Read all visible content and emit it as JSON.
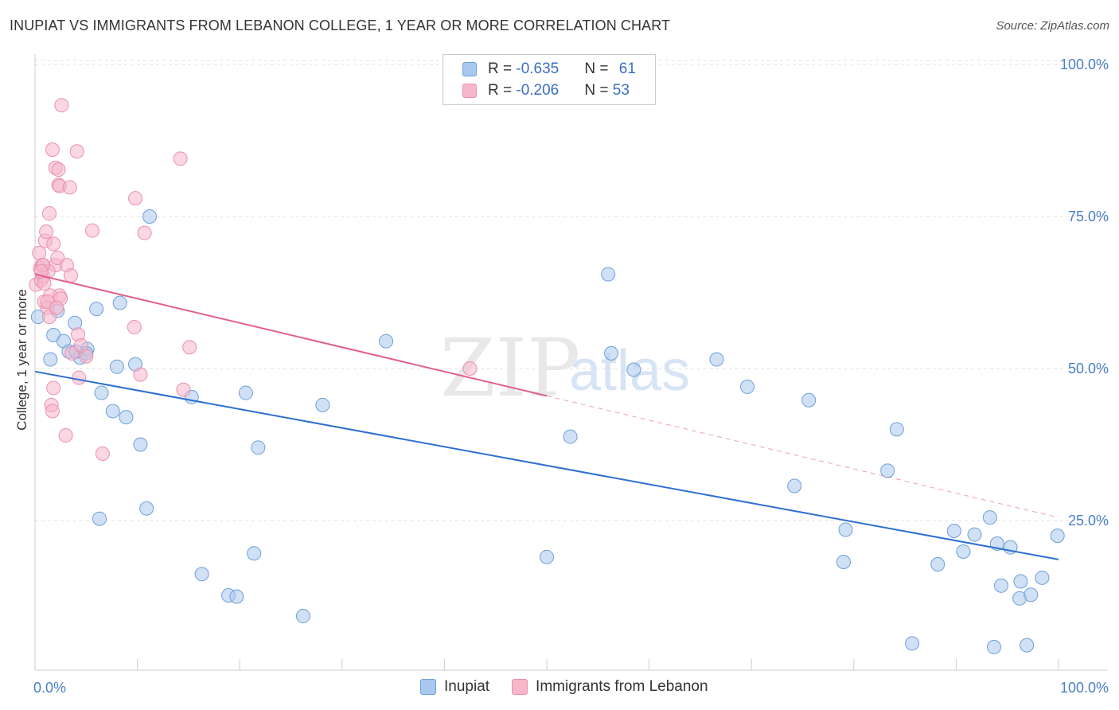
{
  "title": "INUPIAT VS IMMIGRANTS FROM LEBANON COLLEGE, 1 YEAR OR MORE CORRELATION CHART",
  "source": "Source: ZipAtlas.com",
  "watermark": {
    "zip": "ZIP",
    "atlas": "atlas"
  },
  "colors": {
    "blue_fill": "#a9c8ef",
    "blue_stroke": "#6f9fd8",
    "blue_line": "#2f6fd0",
    "pink_fill": "#f6b7ca",
    "pink_stroke": "#e990ad",
    "pink_line": "#e0608a",
    "tick_text": "#4a7ec9",
    "grid": "#e2e2e2"
  },
  "legend": {
    "rows": [
      {
        "r_label": "R = ",
        "r_value": "-0.635",
        "n_label": "N = ",
        "n_value": "61"
      },
      {
        "r_label": "R = ",
        "r_value": "-0.206",
        "n_label": "N = ",
        "n_value": "53"
      }
    ]
  },
  "chart_data": {
    "type": "scatter",
    "title": "INUPIAT VS IMMIGRANTS FROM LEBANON COLLEGE, 1 YEAR OR MORE CORRELATION CHART",
    "xlabel": "",
    "ylabel": "College, 1 year or more",
    "xlim": [
      0,
      100
    ],
    "ylim": [
      0,
      105
    ],
    "x_tick_labels": [
      "0.0%",
      "100.0%"
    ],
    "y_ticks": [
      25,
      50,
      75,
      100
    ],
    "y_tick_labels": [
      "25.0%",
      "50.0%",
      "75.0%",
      "100.0%"
    ],
    "grid": true,
    "legend_position": "top-center",
    "series": [
      {
        "name": "Inupiat",
        "r": -0.635,
        "n": 61,
        "trend": {
          "x0": 0,
          "y0": 49.5,
          "x1": 100,
          "y1": 18.6,
          "dash_from": 100
        },
        "points": [
          [
            0.3,
            58.5
          ],
          [
            1.5,
            51.5
          ],
          [
            1.8,
            55.5
          ],
          [
            2.2,
            59.5
          ],
          [
            2.8,
            54.5
          ],
          [
            3.3,
            52.8
          ],
          [
            3.9,
            57.5
          ],
          [
            4.4,
            51.8
          ],
          [
            5.1,
            53.2
          ],
          [
            6.0,
            59.8
          ],
          [
            6.5,
            46.0
          ],
          [
            7.6,
            43.0
          ],
          [
            8.0,
            50.3
          ],
          [
            8.3,
            60.8
          ],
          [
            8.9,
            42.0
          ],
          [
            9.8,
            50.7
          ],
          [
            10.3,
            37.5
          ],
          [
            10.9,
            27.0
          ],
          [
            11.2,
            75.0
          ],
          [
            15.3,
            45.3
          ],
          [
            16.3,
            16.2
          ],
          [
            18.9,
            12.7
          ],
          [
            19.7,
            12.5
          ],
          [
            20.6,
            46.0
          ],
          [
            21.4,
            19.6
          ],
          [
            21.8,
            37.0
          ],
          [
            26.2,
            9.3
          ],
          [
            28.1,
            44.0
          ],
          [
            34.3,
            54.5
          ],
          [
            6.3,
            25.3
          ],
          [
            50.0,
            19.0
          ],
          [
            52.3,
            38.8
          ],
          [
            56.0,
            65.5
          ],
          [
            56.3,
            52.5
          ],
          [
            58.5,
            49.8
          ],
          [
            66.6,
            51.5
          ],
          [
            69.6,
            47.0
          ],
          [
            74.2,
            30.7
          ],
          [
            75.6,
            44.8
          ],
          [
            79.2,
            23.5
          ],
          [
            79.0,
            18.2
          ],
          [
            83.3,
            33.2
          ],
          [
            84.2,
            40.0
          ],
          [
            85.7,
            4.8
          ],
          [
            88.2,
            17.8
          ],
          [
            89.8,
            23.3
          ],
          [
            90.7,
            19.9
          ],
          [
            91.8,
            22.7
          ],
          [
            93.3,
            25.5
          ],
          [
            93.7,
            4.2
          ],
          [
            94.0,
            21.2
          ],
          [
            94.4,
            14.3
          ],
          [
            95.3,
            20.6
          ],
          [
            96.2,
            12.2
          ],
          [
            96.3,
            15.0
          ],
          [
            96.9,
            4.5
          ],
          [
            97.3,
            12.8
          ],
          [
            98.4,
            15.6
          ],
          [
            99.9,
            22.5
          ],
          [
            5.0,
            52.5
          ],
          [
            4.0,
            52.8
          ]
        ]
      },
      {
        "name": "Immigrants from Lebanon",
        "r": -0.206,
        "n": 53,
        "trend": {
          "x0": 0,
          "y0": 65.5,
          "x1": 100,
          "y1": 25.5,
          "dash_from": 50
        },
        "points": [
          [
            0.1,
            63.8
          ],
          [
            0.4,
            69.0
          ],
          [
            0.5,
            66.5
          ],
          [
            0.6,
            64.5
          ],
          [
            0.7,
            67.0
          ],
          [
            0.8,
            65.2
          ],
          [
            0.9,
            61.0
          ],
          [
            1.0,
            71.0
          ],
          [
            1.1,
            72.5
          ],
          [
            1.2,
            60.0
          ],
          [
            1.4,
            58.5
          ],
          [
            1.4,
            75.5
          ],
          [
            1.5,
            62.0
          ],
          [
            1.6,
            44.0
          ],
          [
            1.7,
            43.0
          ],
          [
            1.7,
            86.0
          ],
          [
            1.8,
            70.5
          ],
          [
            1.8,
            46.8
          ],
          [
            2.0,
            83.0
          ],
          [
            2.0,
            67.0
          ],
          [
            2.2,
            68.2
          ],
          [
            2.3,
            82.7
          ],
          [
            2.3,
            80.2
          ],
          [
            2.4,
            62.0
          ],
          [
            2.4,
            80.0
          ],
          [
            2.5,
            61.5
          ],
          [
            2.6,
            93.3
          ],
          [
            3.0,
            39.0
          ],
          [
            3.1,
            67.0
          ],
          [
            3.4,
            79.8
          ],
          [
            3.5,
            65.3
          ],
          [
            4.1,
            85.7
          ],
          [
            4.2,
            55.6
          ],
          [
            4.3,
            48.5
          ],
          [
            4.5,
            53.8
          ],
          [
            5.0,
            52.0
          ],
          [
            5.6,
            72.7
          ],
          [
            6.6,
            36.0
          ],
          [
            9.7,
            56.8
          ],
          [
            9.8,
            78.0
          ],
          [
            10.3,
            49.0
          ],
          [
            10.7,
            72.3
          ],
          [
            14.2,
            84.5
          ],
          [
            14.5,
            46.5
          ],
          [
            15.1,
            53.5
          ],
          [
            1.2,
            61.0
          ],
          [
            0.9,
            64.0
          ],
          [
            1.3,
            66.0
          ],
          [
            0.8,
            67.0
          ],
          [
            42.5,
            50.0
          ],
          [
            3.6,
            52.5
          ],
          [
            2.1,
            60.0
          ],
          [
            0.6,
            66.0
          ]
        ]
      }
    ]
  }
}
